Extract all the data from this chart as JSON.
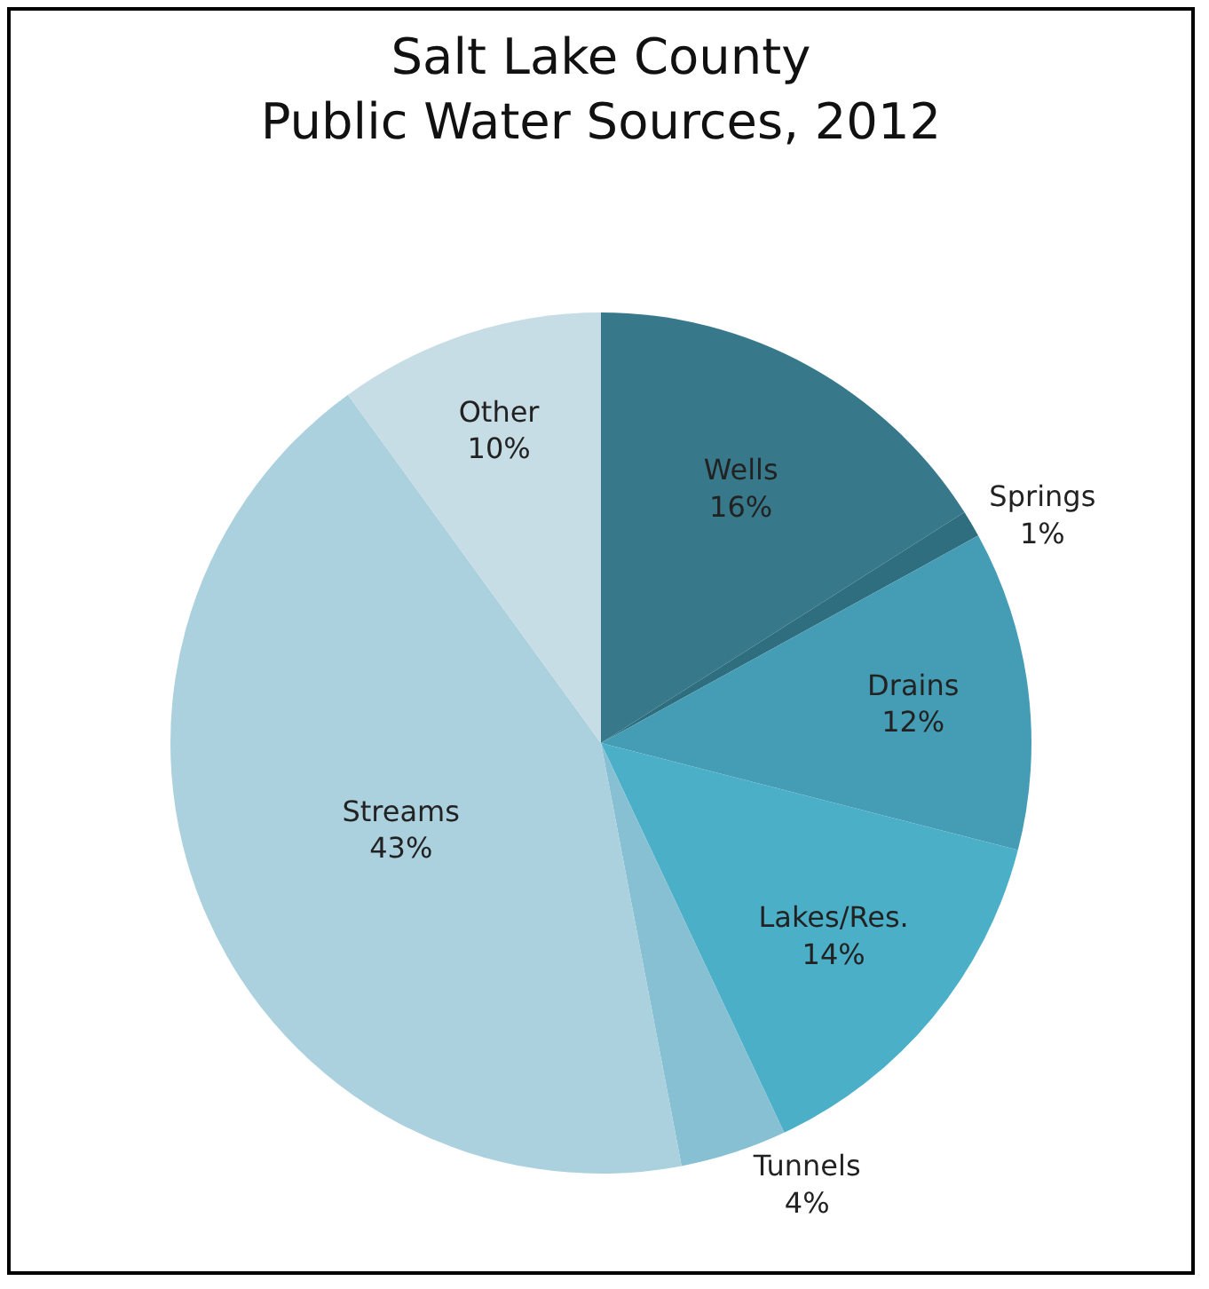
{
  "chart_data": {
    "type": "pie",
    "title": "Salt Lake County\nPublic Water Sources, 2012",
    "categories": [
      "Wells",
      "Springs",
      "Drains",
      "Lakes/Res.",
      "Tunnels",
      "Streams",
      "Other"
    ],
    "values": [
      16,
      1,
      12,
      14,
      4,
      43,
      10
    ],
    "value_labels": [
      "16%",
      "1%",
      "12%",
      "14%",
      "4%",
      "43%",
      "10%"
    ],
    "colors": [
      "#37798a",
      "#2f6e7e",
      "#459db5",
      "#4bafc8",
      "#86c0d2",
      "#abd0de",
      "#c7dde6"
    ],
    "legend": false
  }
}
